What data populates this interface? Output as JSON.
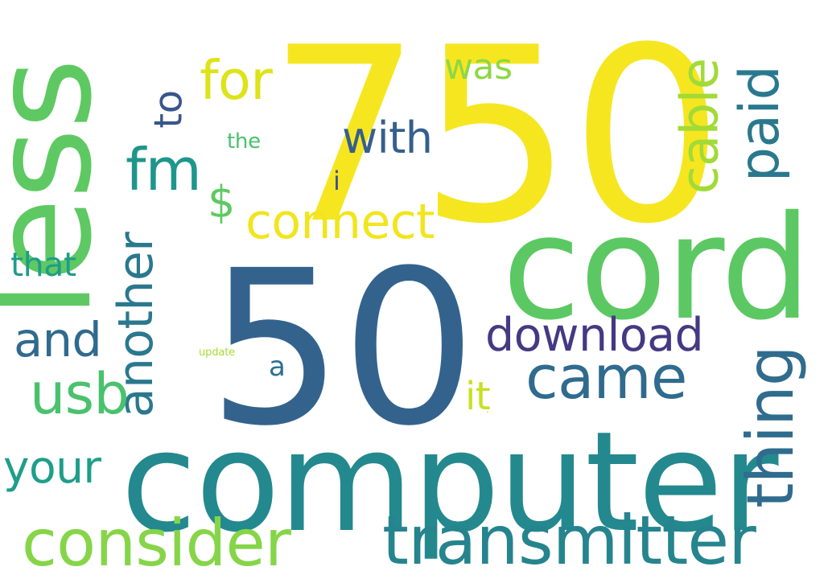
{
  "palette": {
    "yellow": "#f5e51f",
    "light-green": "#8ed645",
    "green": "#5ec962",
    "teal": "#21918c",
    "blue": "#31688e",
    "indigo": "#443983",
    "lime": "#b5de2b"
  },
  "words": [
    {
      "id": "750",
      "text": "750",
      "color": "#f6e620"
    },
    {
      "id": "50",
      "text": "50",
      "color": "#33638d"
    },
    {
      "id": "computer",
      "text": "computer",
      "color": "#23898e"
    },
    {
      "id": "cord",
      "text": "cord",
      "color": "#5cc863"
    },
    {
      "id": "less",
      "text": "less",
      "color": "#5ec962"
    },
    {
      "id": "transmitter",
      "text": "transmitter",
      "color": "#25848e"
    },
    {
      "id": "consider",
      "text": "consider",
      "color": "#86d549"
    },
    {
      "id": "another",
      "text": "another",
      "color": "#2a788e"
    },
    {
      "id": "thing",
      "text": "thing",
      "color": "#2f6c8e"
    },
    {
      "id": "paid",
      "text": "paid",
      "color": "#2a788e"
    },
    {
      "id": "cable",
      "text": "cable",
      "color": "#a2da37"
    },
    {
      "id": "came",
      "text": "came",
      "color": "#2f6b8e"
    },
    {
      "id": "download",
      "text": "download",
      "color": "#443983"
    },
    {
      "id": "connect",
      "text": "connect",
      "color": "#f1e51d"
    },
    {
      "id": "usb",
      "text": "usb",
      "color": "#4ac16d"
    },
    {
      "id": "for",
      "text": "for",
      "color": "#dde318"
    },
    {
      "id": "fm",
      "text": "fm",
      "color": "#1f968b"
    },
    {
      "id": "with",
      "text": "with",
      "color": "#355f8d"
    },
    {
      "id": "and",
      "text": "and",
      "color": "#306a8e"
    },
    {
      "id": "your",
      "text": "your",
      "color": "#1f9e89"
    },
    {
      "id": "was",
      "text": "was",
      "color": "#8fd744"
    },
    {
      "id": "to",
      "text": "to",
      "color": "#39568c"
    },
    {
      "id": "it",
      "text": "it",
      "color": "#c8e020"
    },
    {
      "id": "that",
      "text": "that",
      "color": "#1e9c89"
    },
    {
      "id": "dollar",
      "text": "$",
      "color": "#5ec962"
    },
    {
      "id": "a",
      "text": "a",
      "color": "#2c718e"
    },
    {
      "id": "i",
      "text": "i",
      "color": "#3b528b"
    },
    {
      "id": "the",
      "text": "the",
      "color": "#4ac16d"
    },
    {
      "id": "update",
      "text": "update",
      "color": "#a8db34"
    },
    {
      "id": "dot",
      "text": ".",
      "color": "#c2df23"
    }
  ]
}
